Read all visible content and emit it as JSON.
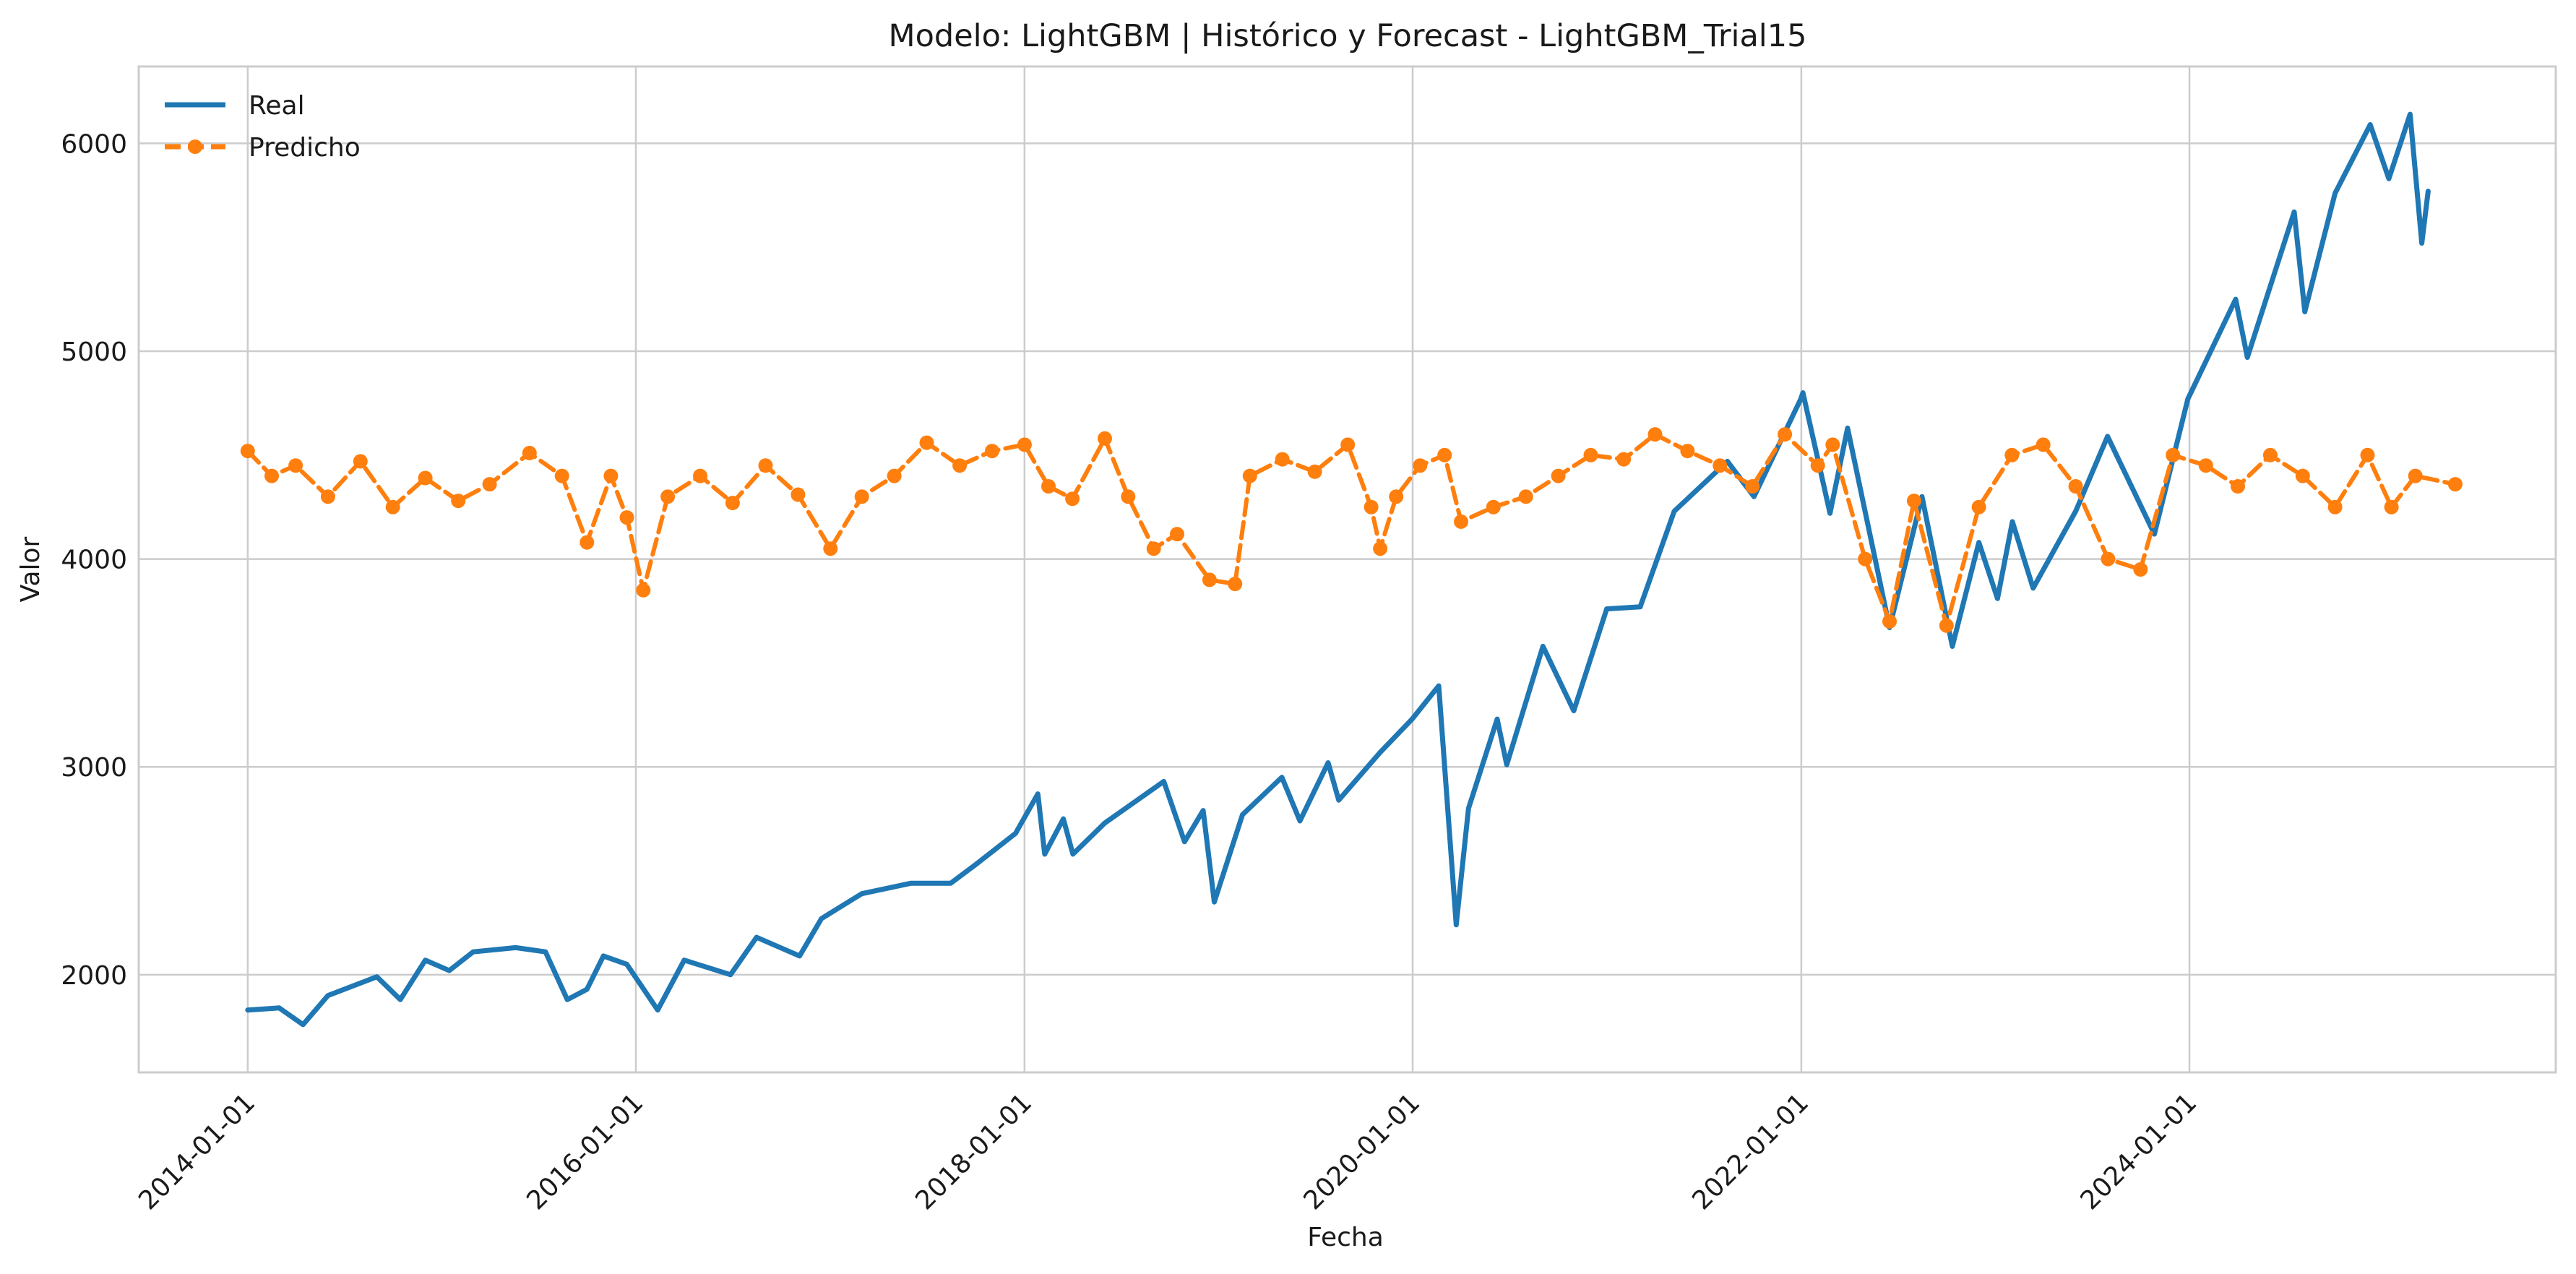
{
  "chart_data": {
    "type": "line",
    "title": "Modelo: LightGBM | Histórico y Forecast - LightGBM_Trial15",
    "xlabel": "Fecha",
    "ylabel": "Valor",
    "x_ticks": [
      "2014-01-01",
      "2016-01-01",
      "2018-01-01",
      "2020-01-01",
      "2022-01-01",
      "2024-01-01"
    ],
    "y_ticks": [
      2000,
      3000,
      4000,
      5000,
      6000
    ],
    "xlim": [
      "2013-06-10",
      "2025-11-20"
    ],
    "ylim": [
      1530,
      6370
    ],
    "grid": true,
    "legend_position": "top-left",
    "series": [
      {
        "name": "Real",
        "color": "#1f77b4",
        "style": "solid",
        "points": [
          [
            "2014-01-01",
            1830
          ],
          [
            "2014-03-01",
            1840
          ],
          [
            "2014-04-15",
            1760
          ],
          [
            "2014-06-01",
            1900
          ],
          [
            "2014-09-01",
            1990
          ],
          [
            "2014-10-15",
            1880
          ],
          [
            "2014-12-01",
            2070
          ],
          [
            "2015-01-15",
            2020
          ],
          [
            "2015-03-01",
            2110
          ],
          [
            "2015-05-20",
            2130
          ],
          [
            "2015-07-15",
            2110
          ],
          [
            "2015-08-25",
            1880
          ],
          [
            "2015-10-01",
            1930
          ],
          [
            "2015-11-01",
            2090
          ],
          [
            "2015-12-15",
            2050
          ],
          [
            "2016-02-11",
            1830
          ],
          [
            "2016-04-01",
            2070
          ],
          [
            "2016-06-27",
            2000
          ],
          [
            "2016-08-15",
            2180
          ],
          [
            "2016-11-04",
            2090
          ],
          [
            "2016-12-15",
            2270
          ],
          [
            "2017-03-01",
            2390
          ],
          [
            "2017-06-01",
            2440
          ],
          [
            "2017-08-15",
            2440
          ],
          [
            "2017-10-01",
            2530
          ],
          [
            "2017-12-15",
            2680
          ],
          [
            "2018-01-26",
            2870
          ],
          [
            "2018-02-08",
            2580
          ],
          [
            "2018-03-15",
            2750
          ],
          [
            "2018-04-02",
            2580
          ],
          [
            "2018-06-01",
            2730
          ],
          [
            "2018-09-20",
            2930
          ],
          [
            "2018-10-29",
            2640
          ],
          [
            "2018-12-03",
            2790
          ],
          [
            "2018-12-24",
            2350
          ],
          [
            "2019-02-15",
            2770
          ],
          [
            "2019-04-30",
            2950
          ],
          [
            "2019-06-03",
            2740
          ],
          [
            "2019-07-26",
            3020
          ],
          [
            "2019-08-15",
            2840
          ],
          [
            "2019-11-01",
            3070
          ],
          [
            "2019-12-31",
            3230
          ],
          [
            "2020-02-19",
            3390
          ],
          [
            "2020-03-23",
            2240
          ],
          [
            "2020-04-15",
            2800
          ],
          [
            "2020-06-08",
            3230
          ],
          [
            "2020-06-26",
            3010
          ],
          [
            "2020-09-02",
            3580
          ],
          [
            "2020-10-30",
            3270
          ],
          [
            "2020-12-31",
            3760
          ],
          [
            "2021-03-04",
            3770
          ],
          [
            "2021-05-07",
            4230
          ],
          [
            "2021-08-15",
            4470
          ],
          [
            "2021-10-04",
            4300
          ],
          [
            "2021-12-31",
            4770
          ],
          [
            "2022-01-04",
            4800
          ],
          [
            "2022-02-24",
            4220
          ],
          [
            "2022-03-29",
            4630
          ],
          [
            "2022-06-16",
            3670
          ],
          [
            "2022-08-16",
            4300
          ],
          [
            "2022-10-12",
            3580
          ],
          [
            "2022-12-01",
            4080
          ],
          [
            "2023-01-05",
            3810
          ],
          [
            "2023-02-02",
            4180
          ],
          [
            "2023-03-13",
            3860
          ],
          [
            "2023-06-01",
            4230
          ],
          [
            "2023-07-31",
            4590
          ],
          [
            "2023-10-27",
            4120
          ],
          [
            "2023-12-29",
            4770
          ],
          [
            "2024-03-28",
            5250
          ],
          [
            "2024-04-19",
            4970
          ],
          [
            "2024-07-16",
            5670
          ],
          [
            "2024-08-05",
            5190
          ],
          [
            "2024-10-01",
            5760
          ],
          [
            "2024-12-06",
            6090
          ],
          [
            "2025-01-10",
            5830
          ],
          [
            "2025-02-19",
            6140
          ],
          [
            "2025-03-13",
            5520
          ],
          [
            "2025-03-25",
            5770
          ]
        ]
      },
      {
        "name": "Predicho",
        "color": "#ff7f0e",
        "style": "dashed-marker",
        "points": [
          [
            "2014-01-01",
            4520
          ],
          [
            "2014-02-15",
            4400
          ],
          [
            "2014-04-01",
            4450
          ],
          [
            "2014-06-01",
            4300
          ],
          [
            "2014-08-01",
            4470
          ],
          [
            "2014-10-01",
            4250
          ],
          [
            "2014-12-01",
            4390
          ],
          [
            "2015-02-01",
            4280
          ],
          [
            "2015-04-01",
            4360
          ],
          [
            "2015-06-15",
            4510
          ],
          [
            "2015-08-15",
            4400
          ],
          [
            "2015-10-01",
            4080
          ],
          [
            "2015-11-15",
            4400
          ],
          [
            "2015-12-15",
            4200
          ],
          [
            "2016-01-15",
            3850
          ],
          [
            "2016-03-01",
            4300
          ],
          [
            "2016-05-01",
            4400
          ],
          [
            "2016-07-01",
            4270
          ],
          [
            "2016-09-01",
            4450
          ],
          [
            "2016-11-01",
            4310
          ],
          [
            "2017-01-01",
            4050
          ],
          [
            "2017-03-01",
            4300
          ],
          [
            "2017-05-01",
            4400
          ],
          [
            "2017-07-01",
            4560
          ],
          [
            "2017-09-01",
            4450
          ],
          [
            "2017-11-01",
            4520
          ],
          [
            "2018-01-01",
            4550
          ],
          [
            "2018-02-15",
            4350
          ],
          [
            "2018-04-01",
            4290
          ],
          [
            "2018-06-01",
            4580
          ],
          [
            "2018-07-15",
            4300
          ],
          [
            "2018-09-01",
            4050
          ],
          [
            "2018-10-15",
            4120
          ],
          [
            "2018-12-15",
            3900
          ],
          [
            "2019-02-01",
            3880
          ],
          [
            "2019-03-01",
            4400
          ],
          [
            "2019-05-01",
            4480
          ],
          [
            "2019-07-01",
            4420
          ],
          [
            "2019-09-01",
            4550
          ],
          [
            "2019-10-15",
            4250
          ],
          [
            "2019-11-01",
            4050
          ],
          [
            "2019-12-01",
            4300
          ],
          [
            "2020-01-15",
            4450
          ],
          [
            "2020-03-01",
            4500
          ],
          [
            "2020-04-01",
            4180
          ],
          [
            "2020-06-01",
            4250
          ],
          [
            "2020-08-01",
            4300
          ],
          [
            "2020-10-01",
            4400
          ],
          [
            "2020-12-01",
            4500
          ],
          [
            "2021-02-01",
            4480
          ],
          [
            "2021-04-01",
            4600
          ],
          [
            "2021-06-01",
            4520
          ],
          [
            "2021-08-01",
            4450
          ],
          [
            "2021-10-01",
            4350
          ],
          [
            "2021-12-01",
            4600
          ],
          [
            "2022-02-01",
            4450
          ],
          [
            "2022-03-01",
            4550
          ],
          [
            "2022-05-01",
            4000
          ],
          [
            "2022-06-16",
            3700
          ],
          [
            "2022-08-01",
            4280
          ],
          [
            "2022-10-01",
            3680
          ],
          [
            "2022-12-01",
            4250
          ],
          [
            "2023-02-01",
            4500
          ],
          [
            "2023-04-01",
            4550
          ],
          [
            "2023-06-01",
            4350
          ],
          [
            "2023-08-01",
            4000
          ],
          [
            "2023-10-01",
            3950
          ],
          [
            "2023-12-01",
            4500
          ],
          [
            "2024-02-01",
            4450
          ],
          [
            "2024-04-01",
            4350
          ],
          [
            "2024-06-01",
            4500
          ],
          [
            "2024-08-01",
            4400
          ],
          [
            "2024-10-01",
            4250
          ],
          [
            "2024-12-01",
            4500
          ],
          [
            "2025-01-15",
            4250
          ],
          [
            "2025-03-01",
            4400
          ],
          [
            "2025-05-15",
            4360
          ]
        ]
      }
    ]
  }
}
